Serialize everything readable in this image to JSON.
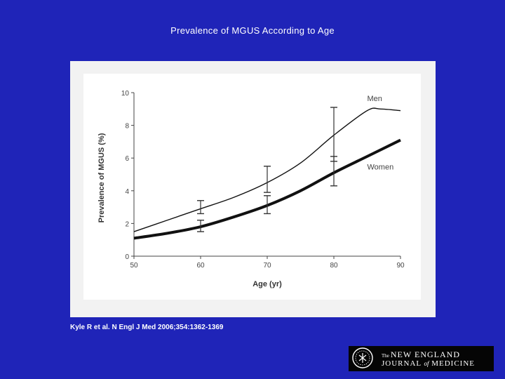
{
  "slide": {
    "title": "Prevalence of MGUS According to Age",
    "citation": "Kyle R et al. N Engl J Med 2006;354:1362-1369"
  },
  "logo": {
    "the": "The",
    "line1": "NEW ENGLAND",
    "line2_a": "JOURNAL",
    "line2_of": "of",
    "line2_b": "MEDICINE"
  },
  "colors": {
    "background": "#1f24b8",
    "panel": "#f2f2f2",
    "line": "#111111"
  },
  "chart_data": {
    "type": "line",
    "title": "",
    "xlabel": "Age (yr)",
    "ylabel": "Prevalence of MGUS (%)",
    "xlim": [
      50,
      90
    ],
    "ylim": [
      0,
      10
    ],
    "x_ticks": [
      50,
      60,
      70,
      80,
      90
    ],
    "y_ticks": [
      0,
      2,
      4,
      6,
      8,
      10
    ],
    "grid": false,
    "series": [
      {
        "name": "Men",
        "x": [
          50,
          55,
          60,
          65,
          70,
          75,
          80,
          85,
          87,
          90
        ],
        "values": [
          1.5,
          2.2,
          2.9,
          3.6,
          4.5,
          5.7,
          7.4,
          8.9,
          9.0,
          8.9
        ],
        "error_bars": [
          {
            "x": 60,
            "low": 2.6,
            "high": 3.4
          },
          {
            "x": 70,
            "low": 3.9,
            "high": 5.5
          },
          {
            "x": 80,
            "low": 5.8,
            "high": 9.1
          }
        ]
      },
      {
        "name": "Women",
        "x": [
          50,
          55,
          60,
          65,
          70,
          75,
          80,
          85,
          90
        ],
        "values": [
          1.1,
          1.4,
          1.8,
          2.4,
          3.1,
          4.0,
          5.1,
          6.1,
          7.1
        ],
        "error_bars": [
          {
            "x": 60,
            "low": 1.5,
            "high": 2.2
          },
          {
            "x": 70,
            "low": 2.6,
            "high": 3.7
          },
          {
            "x": 80,
            "low": 4.3,
            "high": 6.1
          }
        ]
      }
    ]
  }
}
